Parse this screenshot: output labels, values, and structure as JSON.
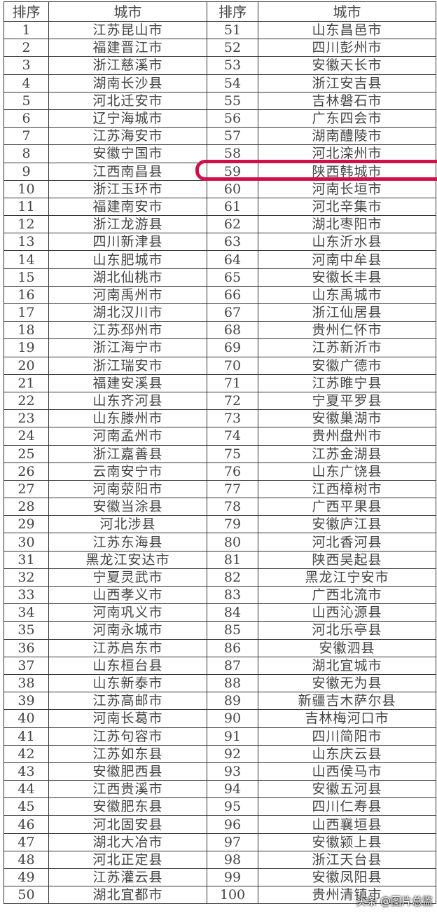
{
  "header": {
    "rank": "排序",
    "city": "城市"
  },
  "rows": [
    [
      "1",
      "江苏昆山市",
      "51",
      "山东昌邑市"
    ],
    [
      "2",
      "福建晋江市",
      "52",
      "四川彭州市"
    ],
    [
      "3",
      "浙江慈溪市",
      "53",
      "安徽天长市"
    ],
    [
      "4",
      "湖南长沙县",
      "54",
      "浙江安吉县"
    ],
    [
      "5",
      "河北迁安市",
      "55",
      "吉林磐石市"
    ],
    [
      "6",
      "辽宁海城市",
      "56",
      "广东四会市"
    ],
    [
      "7",
      "江苏海安市",
      "57",
      "湖南醴陵市"
    ],
    [
      "8",
      "安徽宁国市",
      "58",
      "河北滦州市"
    ],
    [
      "9",
      "江西南昌县",
      "59",
      "陕西韩城市"
    ],
    [
      "10",
      "浙江玉环市",
      "60",
      "河南长垣市"
    ],
    [
      "11",
      "福建南安市",
      "61",
      "河北辛集市"
    ],
    [
      "12",
      "浙江龙游县",
      "62",
      "湖北枣阳市"
    ],
    [
      "13",
      "四川新津县",
      "63",
      "山东沂水县"
    ],
    [
      "14",
      "山东肥城市",
      "64",
      "河南中牟县"
    ],
    [
      "15",
      "湖北仙桃市",
      "65",
      "安徽长丰县"
    ],
    [
      "16",
      "河南禹州市",
      "66",
      "山东禹城市"
    ],
    [
      "17",
      "湖北汉川市",
      "67",
      "浙江仙居县"
    ],
    [
      "18",
      "江苏邳州市",
      "68",
      "贵州仁怀市"
    ],
    [
      "19",
      "浙江海宁市",
      "69",
      "江苏新沂市"
    ],
    [
      "20",
      "浙江瑞安市",
      "70",
      "安徽广德市"
    ],
    [
      "21",
      "福建安溪县",
      "71",
      "江苏睢宁县"
    ],
    [
      "22",
      "山东齐河县",
      "72",
      "宁夏平罗县"
    ],
    [
      "23",
      "山东滕州市",
      "73",
      "安徽巢湖市"
    ],
    [
      "24",
      "河南孟州市",
      "74",
      "贵州盘州市"
    ],
    [
      "25",
      "浙江嘉善县",
      "75",
      "江苏金湖县"
    ],
    [
      "26",
      "云南安宁市",
      "76",
      "山东广饶县"
    ],
    [
      "27",
      "河南荥阳市",
      "77",
      "江西樟树市"
    ],
    [
      "28",
      "安徽当涂县",
      "78",
      "广西平果县"
    ],
    [
      "29",
      "河北涉县",
      "79",
      "安徽庐江县"
    ],
    [
      "30",
      "江苏东海县",
      "80",
      "河北香河县"
    ],
    [
      "31",
      "黑龙江安达市",
      "81",
      "陕西吴起县"
    ],
    [
      "32",
      "宁夏灵武市",
      "82",
      "黑龙江宁安市"
    ],
    [
      "33",
      "山西孝义市",
      "83",
      "广西北流市"
    ],
    [
      "34",
      "河南巩义市",
      "84",
      "山西沁源县"
    ],
    [
      "35",
      "河南永城市",
      "85",
      "河北乐亭县"
    ],
    [
      "36",
      "江苏启东市",
      "86",
      "安徽泗县"
    ],
    [
      "37",
      "山东桓台县",
      "87",
      "湖北宜城市"
    ],
    [
      "38",
      "山东新泰市",
      "88",
      "安徽无为县"
    ],
    [
      "39",
      "江苏高邮市",
      "89",
      "新疆吉木萨尔县"
    ],
    [
      "40",
      "河南长葛市",
      "90",
      "吉林梅河口市"
    ],
    [
      "41",
      "江苏句容市",
      "91",
      "四川简阳市"
    ],
    [
      "42",
      "江苏如东县",
      "92",
      "山东庆云县"
    ],
    [
      "43",
      "安徽肥西县",
      "93",
      "山西侯马市"
    ],
    [
      "44",
      "江西贵溪市",
      "94",
      "安徽五河县"
    ],
    [
      "45",
      "安徽肥东县",
      "95",
      "四川仁寿县"
    ],
    [
      "46",
      "河北固安县",
      "96",
      "山西襄垣县"
    ],
    [
      "47",
      "湖北大冶市",
      "97",
      "安徽颍上县"
    ],
    [
      "48",
      "河北正定县",
      "98",
      "浙江天台县"
    ],
    [
      "49",
      "江苏灌云县",
      "99",
      "安徽凤阳县"
    ],
    [
      "50",
      "湖北宜都市",
      "100",
      "贵州清镇市"
    ]
  ],
  "highlight": {
    "row_rank": "59",
    "color": "#d0104a"
  },
  "watermark": "头条 @图片总监"
}
